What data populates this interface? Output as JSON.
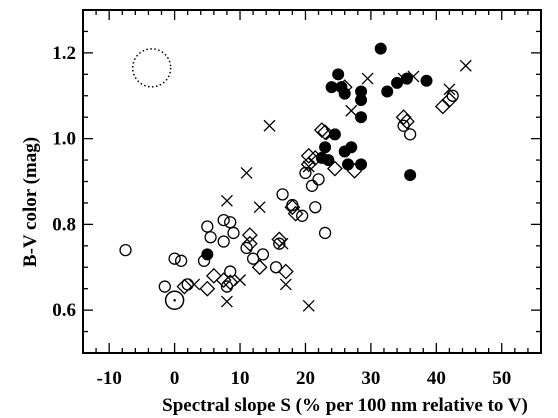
{
  "chart_data": {
    "type": "scatter",
    "xlabel": "Spectral slope S (% per 100 nm relative to V)",
    "ylabel": "B-V color (mag)",
    "xlim": [
      -14,
      56
    ],
    "ylim": [
      0.5,
      1.3
    ],
    "x_ticks": [
      "-10",
      "0",
      "10",
      "20",
      "30",
      "40",
      "50"
    ],
    "y_ticks": [
      "0.6",
      "0.8",
      "1.0",
      "1.2"
    ],
    "grid": false,
    "legend": "none",
    "series": [
      {
        "marker": "open-circle",
        "points": [
          [
            -7.5,
            0.74
          ],
          [
            -1.5,
            0.655
          ],
          [
            0,
            0.72
          ],
          [
            1,
            0.715
          ],
          [
            2,
            0.66
          ],
          [
            5,
            0.795
          ],
          [
            5.5,
            0.77
          ],
          [
            4.5,
            0.715
          ],
          [
            7.5,
            0.81
          ],
          [
            8.5,
            0.805
          ],
          [
            7.5,
            0.76
          ],
          [
            9,
            0.78
          ],
          [
            8.5,
            0.69
          ],
          [
            8,
            0.655
          ],
          [
            11,
            0.745
          ],
          [
            12,
            0.72
          ],
          [
            13.5,
            0.73
          ],
          [
            15.5,
            0.7
          ],
          [
            16.5,
            0.87
          ],
          [
            16,
            0.755
          ],
          [
            18,
            0.845
          ],
          [
            19.5,
            0.82
          ],
          [
            20,
            0.92
          ],
          [
            21,
            0.89
          ],
          [
            21.5,
            0.84
          ],
          [
            22,
            0.905
          ],
          [
            23,
            0.78
          ],
          [
            35,
            1.03
          ],
          [
            36,
            1.01
          ],
          [
            42.5,
            1.1
          ]
        ]
      },
      {
        "marker": "filled-circle",
        "points": [
          [
            5,
            0.73
          ],
          [
            22.5,
            0.955
          ],
          [
            23.5,
            0.95
          ],
          [
            23,
            0.98
          ],
          [
            24,
            1.12
          ],
          [
            25,
            1.15
          ],
          [
            25.5,
            1.12
          ],
          [
            26,
            1.105
          ],
          [
            24.5,
            1.01
          ],
          [
            26,
            0.97
          ],
          [
            26.5,
            0.94
          ],
          [
            27,
            0.98
          ],
          [
            28.5,
            0.94
          ],
          [
            28.5,
            1.05
          ],
          [
            28.5,
            1.11
          ],
          [
            28.5,
            1.09
          ],
          [
            31.5,
            1.21
          ],
          [
            32.5,
            1.11
          ],
          [
            34,
            1.13
          ],
          [
            35.5,
            1.14
          ],
          [
            38.5,
            1.135
          ],
          [
            36,
            0.915
          ]
        ]
      },
      {
        "marker": "diamond",
        "points": [
          [
            1.5,
            0.655
          ],
          [
            5,
            0.65
          ],
          [
            6,
            0.68
          ],
          [
            7.5,
            0.67
          ],
          [
            8.5,
            0.665
          ],
          [
            11.5,
            0.775
          ],
          [
            11.5,
            0.755
          ],
          [
            13,
            0.7
          ],
          [
            16,
            0.765
          ],
          [
            17,
            0.69
          ],
          [
            18,
            0.84
          ],
          [
            18.5,
            0.825
          ],
          [
            20.5,
            0.96
          ],
          [
            21.5,
            0.955
          ],
          [
            20.5,
            0.94
          ],
          [
            22.5,
            1.02
          ],
          [
            23,
            1.015
          ],
          [
            24.5,
            0.93
          ],
          [
            26,
            1.12
          ],
          [
            27.5,
            0.925
          ],
          [
            35,
            1.05
          ],
          [
            35.5,
            1.04
          ],
          [
            41,
            1.075
          ],
          [
            42,
            1.09
          ]
        ]
      },
      {
        "marker": "cross",
        "points": [
          [
            3,
            0.66
          ],
          [
            8,
            0.855
          ],
          [
            8,
            0.62
          ],
          [
            10,
            0.67
          ],
          [
            11,
            0.92
          ],
          [
            13,
            0.84
          ],
          [
            14.5,
            1.03
          ],
          [
            16.5,
            0.755
          ],
          [
            17,
            0.66
          ],
          [
            20.5,
            0.61
          ],
          [
            20.5,
            0.935
          ],
          [
            24,
            1.01
          ],
          [
            27,
            1.065
          ],
          [
            29.5,
            1.14
          ],
          [
            35,
            1.14
          ],
          [
            36.5,
            1.145
          ],
          [
            42,
            1.115
          ],
          [
            44.5,
            1.17
          ]
        ]
      }
    ],
    "annotations": [
      {
        "type": "dotted-circle",
        "x": -3.5,
        "y": 1.165
      },
      {
        "type": "circled-point",
        "x": 0,
        "y": 0.623
      }
    ]
  }
}
